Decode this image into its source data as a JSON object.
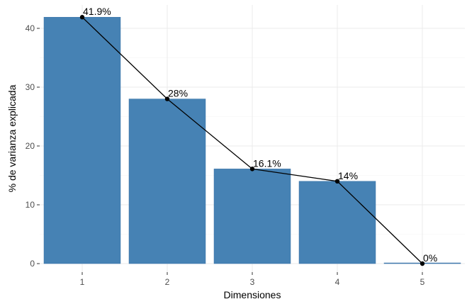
{
  "chart_data": {
    "type": "bar",
    "categories": [
      "1",
      "2",
      "3",
      "4",
      "5"
    ],
    "values": [
      41.9,
      28,
      16.1,
      14,
      0
    ],
    "data_labels": [
      "41.9%",
      "28%",
      "16.1%",
      "14%",
      "0%"
    ],
    "line_overlay": true,
    "xlabel": "Dimensiones",
    "ylabel": "% de varianza explicada",
    "yticks": [
      0,
      10,
      20,
      30,
      40
    ],
    "ylim": [
      0,
      44
    ],
    "grid": true,
    "bar_color": "#4682B4",
    "line_color": "#000000"
  }
}
